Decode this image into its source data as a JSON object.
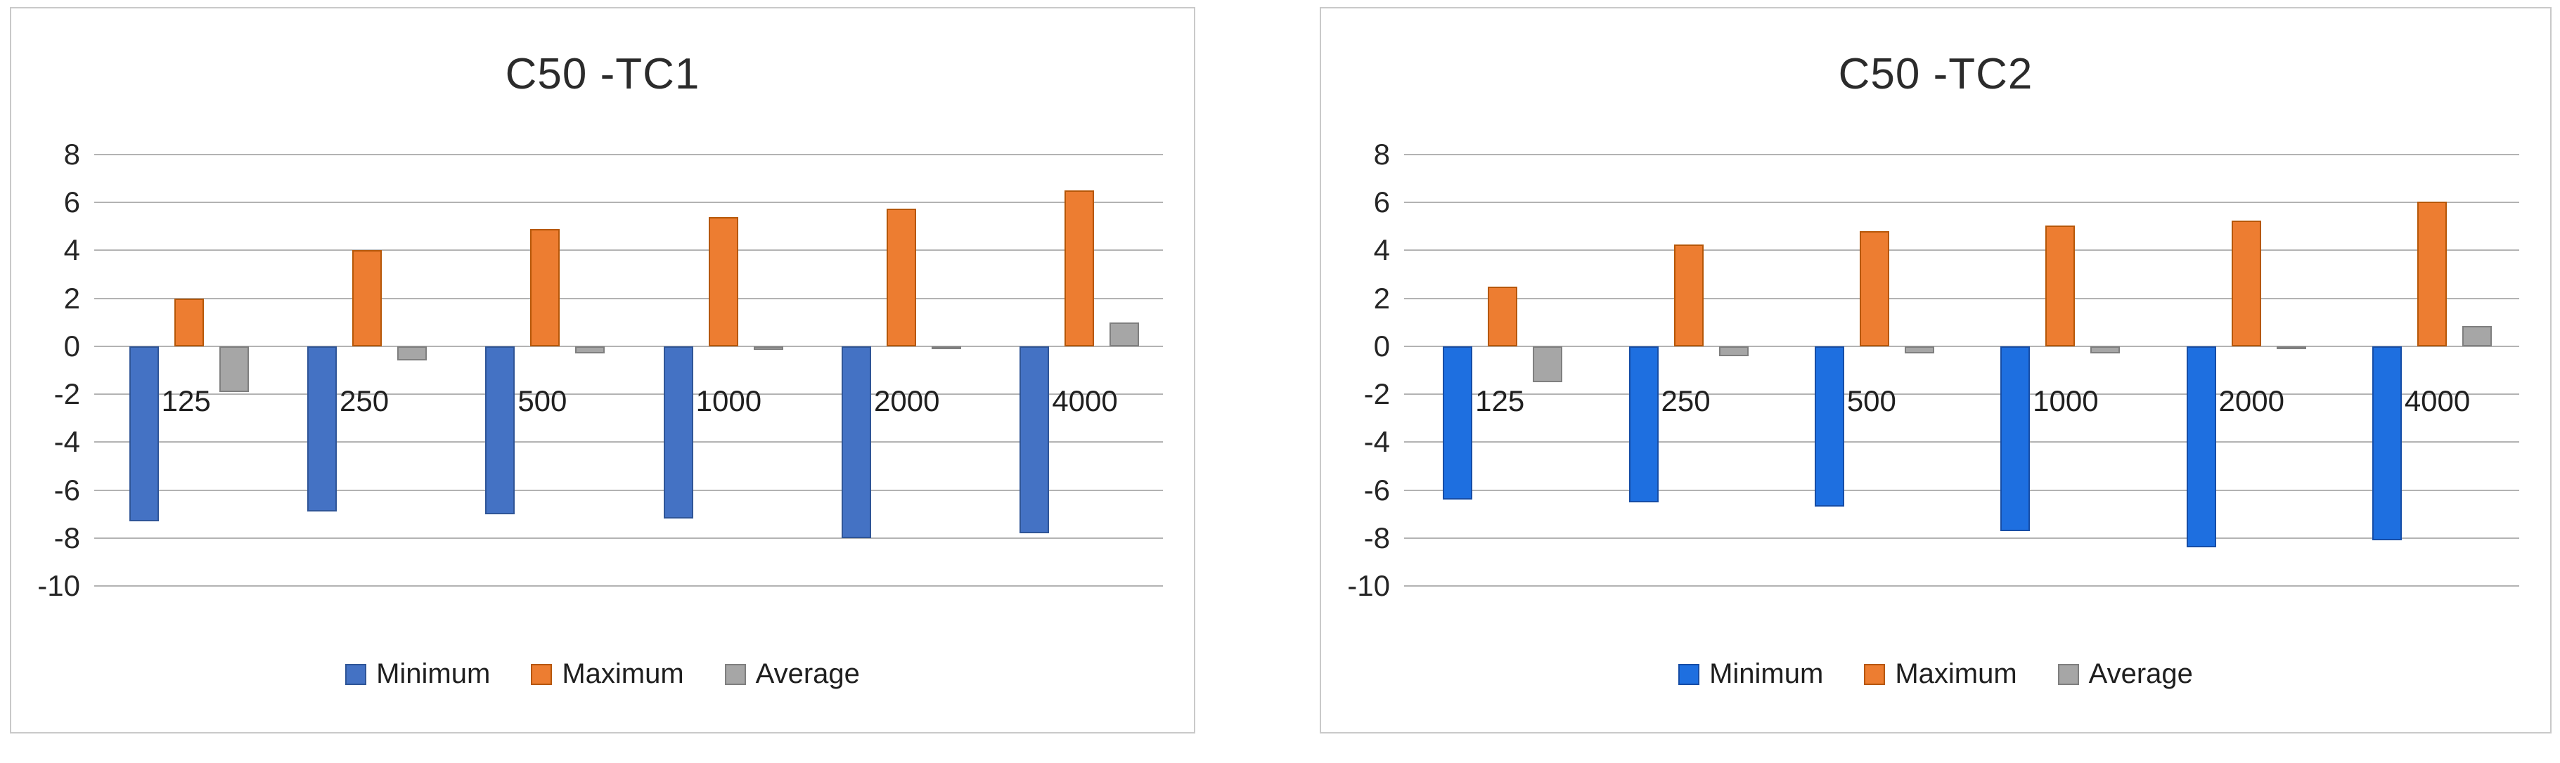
{
  "chart_data": [
    {
      "type": "bar",
      "title": "C50 -TC1",
      "categories": [
        "125",
        "250",
        "500",
        "1000",
        "2000",
        "4000"
      ],
      "series": [
        {
          "name": "Minimum",
          "color": "#4472C4",
          "border_color": "#2F5597",
          "values": [
            -7.3,
            -6.9,
            -7.0,
            -7.2,
            -8.0,
            -7.8
          ]
        },
        {
          "name": "Maximum",
          "color": "#ED7D31",
          "border_color": "#B65708",
          "values": [
            2.0,
            4.0,
            4.9,
            5.4,
            5.75,
            6.5
          ]
        },
        {
          "name": "Average",
          "color": "#A6A6A6",
          "border_color": "#7F7F7F",
          "values": [
            -1.9,
            -0.6,
            -0.3,
            -0.15,
            -0.1,
            1.0
          ]
        }
      ],
      "xlabel": "",
      "ylabel": "",
      "ylim": [
        -10,
        8
      ],
      "yticks": [
        8,
        6,
        4,
        2,
        0,
        -2,
        -4,
        -6,
        -8,
        -10
      ],
      "grid": true,
      "legend_position": "bottom",
      "legend_labels": [
        "Minimum",
        "Maximum",
        "Average"
      ]
    },
    {
      "type": "bar",
      "title": "C50 -TC2",
      "categories": [
        "125",
        "250",
        "500",
        "1000",
        "2000",
        "4000"
      ],
      "series": [
        {
          "name": "Minimum",
          "color": "#1E6FE0",
          "border_color": "#164DA6",
          "values": [
            -6.4,
            -6.5,
            -6.7,
            -7.7,
            -8.4,
            -8.1
          ]
        },
        {
          "name": "Maximum",
          "color": "#ED7D31",
          "border_color": "#B65708",
          "values": [
            2.5,
            4.25,
            4.8,
            5.05,
            5.25,
            6.05
          ]
        },
        {
          "name": "Average",
          "color": "#A6A6A6",
          "border_color": "#7F7F7F",
          "values": [
            -1.5,
            -0.4,
            -0.3,
            -0.3,
            -0.1,
            0.85
          ]
        }
      ],
      "xlabel": "",
      "ylabel": "",
      "ylim": [
        -10,
        8
      ],
      "yticks": [
        8,
        6,
        4,
        2,
        0,
        -2,
        -4,
        -6,
        -8,
        -10
      ],
      "grid": true,
      "legend_position": "bottom",
      "legend_labels": [
        "Minimum",
        "Maximum",
        "Average"
      ]
    }
  ],
  "colors": {
    "grid": "#b3b3b3",
    "panel_border": "#c9c9c9",
    "text": "#262626",
    "tc1_minimum_blue": "#4472C4",
    "tc2_minimum_blue": "#1E6FE0",
    "maximum_orange": "#ED7D31",
    "average_gray": "#A6A6A6"
  }
}
